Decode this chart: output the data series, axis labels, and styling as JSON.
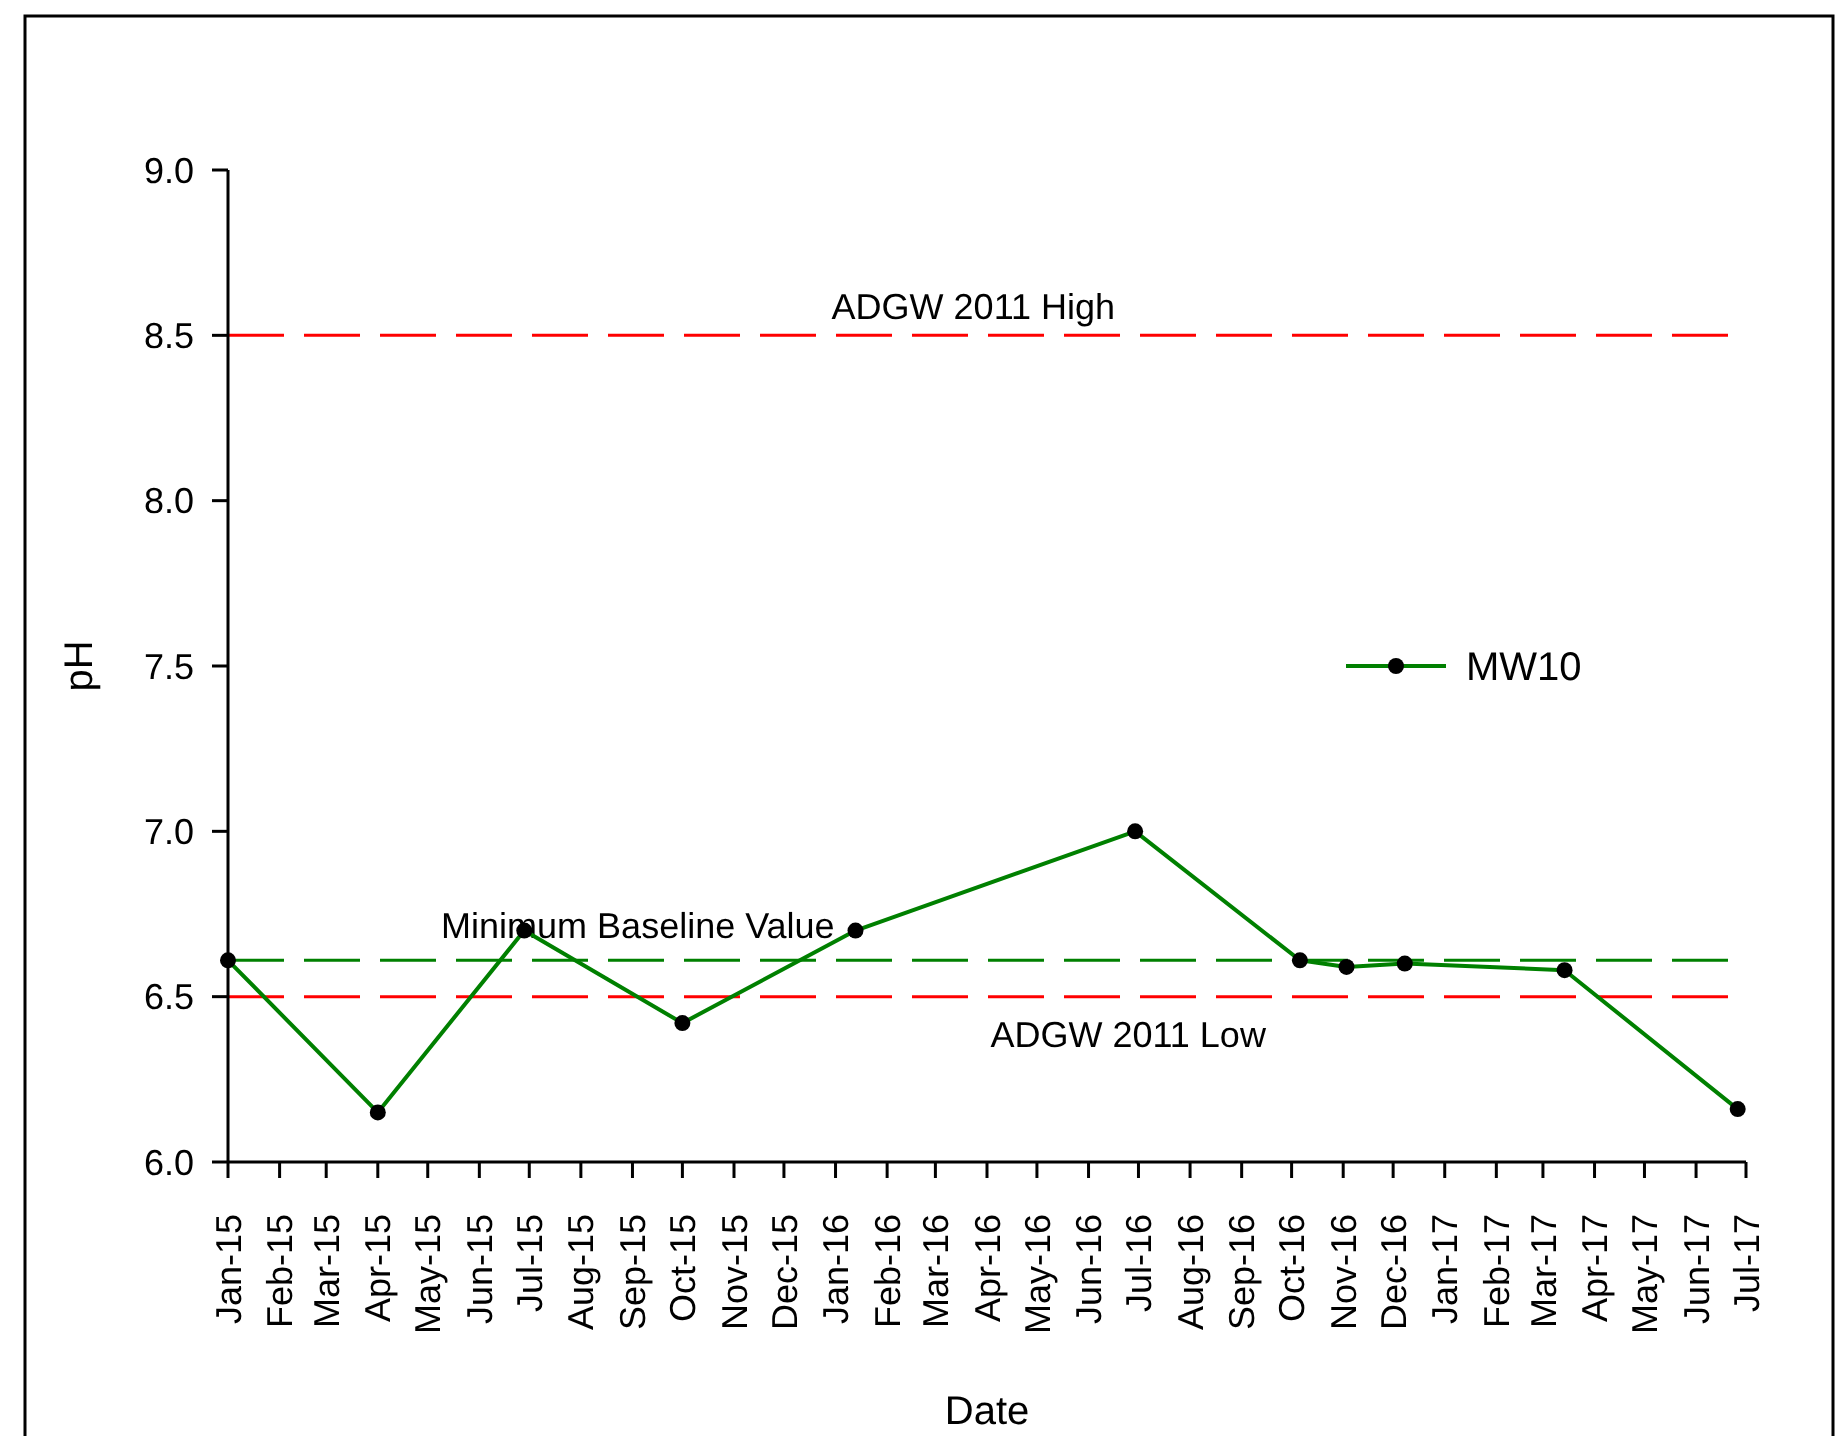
{
  "chart_data": {
    "type": "line",
    "xlabel": "Date",
    "ylabel": "pH",
    "x": [
      "2015-01-01",
      "2015-04-01",
      "2015-06-28",
      "2015-10-01",
      "2016-01-13",
      "2016-06-29",
      "2016-10-06",
      "2016-11-03",
      "2016-12-08",
      "2017-03-14",
      "2017-06-26"
    ],
    "series": [
      {
        "name": "MW10",
        "color": "#008000",
        "values": [
          6.61,
          6.15,
          6.7,
          6.42,
          6.7,
          7.0,
          6.61,
          6.59,
          6.6,
          6.58,
          6.16
        ]
      }
    ],
    "xlim": [
      "2015-01-01",
      "2017-07-01"
    ],
    "xticks": [
      {
        "value": "2015-01",
        "label": "Jan-15"
      },
      {
        "value": "2015-02",
        "label": "Feb-15"
      },
      {
        "value": "2015-03",
        "label": "Mar-15"
      },
      {
        "value": "2015-04",
        "label": "Apr-15"
      },
      {
        "value": "2015-05",
        "label": "May-15"
      },
      {
        "value": "2015-06",
        "label": "Jun-15"
      },
      {
        "value": "2015-07",
        "label": "Jul-15"
      },
      {
        "value": "2015-08",
        "label": "Aug-15"
      },
      {
        "value": "2015-09",
        "label": "Sep-15"
      },
      {
        "value": "2015-10",
        "label": "Oct-15"
      },
      {
        "value": "2015-11",
        "label": "Nov-15"
      },
      {
        "value": "2015-12",
        "label": "Dec-15"
      },
      {
        "value": "2016-01",
        "label": "Jan-16"
      },
      {
        "value": "2016-02",
        "label": "Feb-16"
      },
      {
        "value": "2016-03",
        "label": "Mar-16"
      },
      {
        "value": "2016-04",
        "label": "Apr-16"
      },
      {
        "value": "2016-05",
        "label": "May-16"
      },
      {
        "value": "2016-06",
        "label": "Jun-16"
      },
      {
        "value": "2016-07",
        "label": "Jul-16"
      },
      {
        "value": "2016-08",
        "label": "Aug-16"
      },
      {
        "value": "2016-09",
        "label": "Sep-16"
      },
      {
        "value": "2016-10",
        "label": "Oct-16"
      },
      {
        "value": "2016-11",
        "label": "Nov-16"
      },
      {
        "value": "2016-12",
        "label": "Dec-16"
      },
      {
        "value": "2017-01",
        "label": "Jan-17"
      },
      {
        "value": "2017-02",
        "label": "Feb-17"
      },
      {
        "value": "2017-03",
        "label": "Mar-17"
      },
      {
        "value": "2017-04",
        "label": "Apr-17"
      },
      {
        "value": "2017-05",
        "label": "May-17"
      },
      {
        "value": "2017-06",
        "label": "Jun-17"
      },
      {
        "value": "2017-07",
        "label": "Jul-17"
      }
    ],
    "ylim": [
      6,
      9
    ],
    "yticks": [
      {
        "value": 6,
        "label": "6.0"
      },
      6.5,
      {
        "value": 7,
        "label": "7.0"
      },
      7.5,
      {
        "value": 8,
        "label": "8.0"
      },
      8.5,
      {
        "value": 9,
        "label": "9.0"
      }
    ],
    "ref_lines": [
      {
        "axis": "y",
        "value": 8.5,
        "label": "ADGW 2011 High",
        "color": "#ff0000",
        "line_style": "dashed"
      },
      {
        "axis": "y",
        "value": 6.61,
        "label": "Minimum Baseline Value",
        "color": "#008000",
        "line_style": "dashed"
      },
      {
        "axis": "y",
        "value": 6.5,
        "label": "ADGW 2011 Low",
        "color": "#ff0000",
        "line_style": "dashed"
      }
    ],
    "legend": "right",
    "marker": "circle"
  }
}
